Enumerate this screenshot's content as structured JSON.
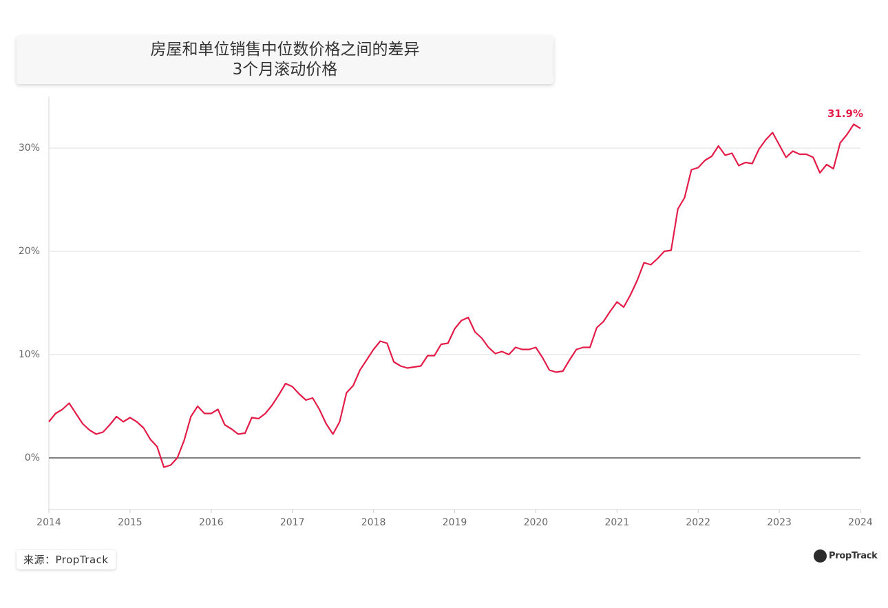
{
  "chart_data": {
    "type": "line",
    "title": "房屋和单位销售中位数价格之间的差异",
    "subtitle": "3个月滚动价格",
    "source": "来源：PropTrack",
    "brand": "PropTrack",
    "xlim": [
      2014,
      2024
    ],
    "xticks": [
      2014,
      2015,
      2016,
      2017,
      2018,
      2019,
      2020,
      2021,
      2022,
      2023,
      2024
    ],
    "ylim": [
      -5,
      35
    ],
    "yticks": [
      {
        "value": 0,
        "label": "0%"
      },
      {
        "value": 10,
        "label": "10%"
      },
      {
        "value": 20,
        "label": "20%"
      },
      {
        "value": 30,
        "label": "30%"
      }
    ],
    "grid": true,
    "x": [
      2014,
      2014.083,
      2014.167,
      2014.25,
      2014.333,
      2014.417,
      2014.5,
      2014.583,
      2014.667,
      2014.75,
      2014.833,
      2014.917,
      2015,
      2015.083,
      2015.167,
      2015.25,
      2015.333,
      2015.417,
      2015.5,
      2015.583,
      2015.667,
      2015.75,
      2015.833,
      2015.917,
      2016,
      2016.083,
      2016.167,
      2016.25,
      2016.333,
      2016.417,
      2016.5,
      2016.583,
      2016.667,
      2016.75,
      2016.833,
      2016.917,
      2017,
      2017.083,
      2017.167,
      2017.25,
      2017.333,
      2017.417,
      2017.5,
      2017.583,
      2017.667,
      2017.75,
      2017.833,
      2017.917,
      2018,
      2018.083,
      2018.167,
      2018.25,
      2018.333,
      2018.417,
      2018.5,
      2018.583,
      2018.667,
      2018.75,
      2018.833,
      2018.917,
      2019,
      2019.083,
      2019.167,
      2019.25,
      2019.333,
      2019.417,
      2019.5,
      2019.583,
      2019.667,
      2019.75,
      2019.833,
      2019.917,
      2020,
      2020.083,
      2020.167,
      2020.25,
      2020.333,
      2020.417,
      2020.5,
      2020.583,
      2020.667,
      2020.75,
      2020.833,
      2020.917,
      2021,
      2021.083,
      2021.167,
      2021.25,
      2021.333,
      2021.417,
      2021.5,
      2021.583,
      2021.667,
      2021.75,
      2021.833,
      2021.917,
      2022,
      2022.083,
      2022.167,
      2022.25,
      2022.333,
      2022.417,
      2022.5,
      2022.583,
      2022.667,
      2022.75,
      2022.833,
      2022.917,
      2023,
      2023.083,
      2023.167,
      2023.25,
      2023.333,
      2023.417,
      2023.5,
      2023.583,
      2023.667,
      2023.75,
      2023.833,
      2023.917,
      2024
    ],
    "series": [
      {
        "color": "#e31c48",
        "values": [
          3.5,
          4.3,
          4.7,
          5.3,
          4.3,
          3.3,
          2.7,
          2.3,
          2.5,
          3.2,
          4.0,
          3.5,
          3.9,
          3.5,
          2.9,
          1.8,
          1.1,
          -0.9,
          -0.7,
          0.0,
          1.7,
          4.0,
          5.0,
          4.3,
          4.3,
          4.7,
          3.2,
          2.8,
          2.3,
          2.4,
          3.9,
          3.8,
          4.3,
          5.1,
          6.1,
          7.2,
          6.9,
          6.2,
          5.6,
          5.8,
          4.7,
          3.3,
          2.3,
          3.5,
          6.3,
          7.0,
          8.5,
          9.5,
          10.5,
          11.3,
          11.1,
          9.3,
          8.9,
          8.7,
          8.8,
          8.9,
          9.9,
          9.9,
          11.0,
          11.1,
          12.5,
          13.3,
          13.6,
          12.2,
          11.6,
          10.7,
          10.1,
          10.3,
          10.0,
          10.7,
          10.5,
          10.5,
          10.7,
          9.7,
          8.5,
          8.3,
          8.4,
          9.5,
          10.5,
          10.7,
          10.7,
          12.6,
          13.2,
          14.2,
          15.1,
          14.6,
          15.8,
          17.2,
          18.9,
          18.7,
          19.3,
          20.0,
          20.1,
          24.1,
          25.2,
          27.9,
          28.1,
          28.8,
          29.2,
          30.2,
          29.3,
          29.5,
          28.3,
          28.6,
          28.5,
          29.9,
          30.8,
          31.5,
          30.3,
          29.1,
          29.7,
          29.4,
          29.4,
          29.1,
          27.6,
          28.4,
          28.0,
          30.5,
          31.3,
          32.3,
          31.9
        ],
        "value_labels": [
          null,
          null,
          null,
          null,
          null,
          null,
          null,
          null,
          null,
          null,
          null,
          null,
          null,
          null,
          null,
          null,
          null,
          null,
          null,
          null,
          null,
          null,
          null,
          null,
          null,
          null,
          null,
          null,
          null,
          null,
          null,
          null,
          null,
          null,
          null,
          null,
          null,
          null,
          null,
          null,
          null,
          null,
          null,
          null,
          null,
          null,
          null,
          null,
          null,
          null,
          null,
          null,
          null,
          null,
          null,
          null,
          null,
          null,
          null,
          null,
          null,
          null,
          null,
          null,
          null,
          null,
          null,
          null,
          null,
          null,
          null,
          null,
          null,
          null,
          null,
          null,
          null,
          null,
          null,
          null,
          null,
          null,
          null,
          null,
          null,
          null,
          null,
          null,
          null,
          null,
          null,
          null,
          null,
          null,
          null,
          null,
          null,
          null,
          null,
          null,
          null,
          null,
          null,
          null,
          null,
          null,
          null,
          null,
          null,
          null,
          null,
          null,
          null,
          null,
          null,
          null,
          null,
          null,
          null,
          null,
          "31.9%"
        ]
      }
    ]
  }
}
